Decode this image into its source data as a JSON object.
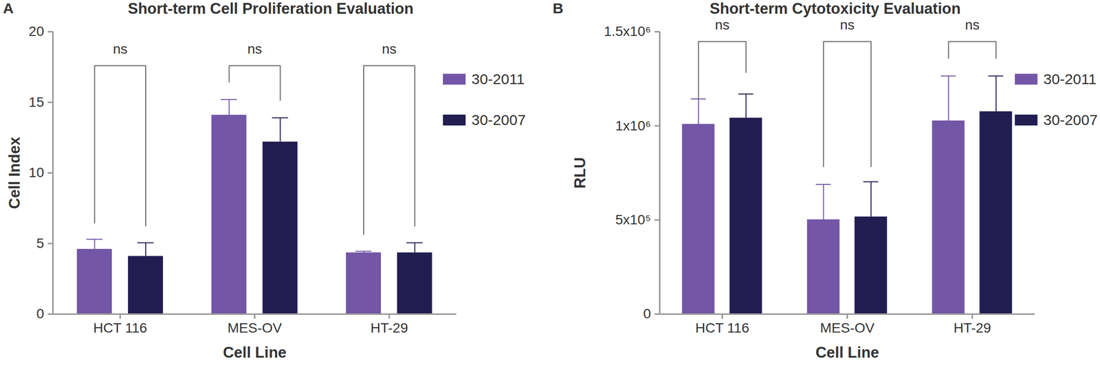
{
  "chart_data": [
    {
      "type": "bar",
      "panel_label": "A",
      "title": "Short-term Cell Proliferation Evaluation",
      "x_label": "Cell Line",
      "y_label": "Cell Index",
      "categories": [
        "HCT 116",
        "MES-OV",
        "HT-29"
      ],
      "series": [
        {
          "name": "30-2011",
          "color": "#7356a6",
          "values": [
            4.6,
            14.1,
            4.35
          ],
          "errors": [
            0.7,
            1.1,
            0.1
          ]
        },
        {
          "name": "30-2007",
          "color": "#221e52",
          "values": [
            4.1,
            12.2,
            4.35
          ],
          "errors": [
            0.95,
            1.7,
            0.7
          ]
        }
      ],
      "ylim": [
        0,
        20
      ],
      "yticks": [
        0,
        5,
        10,
        15,
        20
      ],
      "legend": "right",
      "annotations": [
        {
          "text": "ns",
          "category": "HCT 116",
          "y": 17.6,
          "y_left": 6.4,
          "y_right": 6.2
        },
        {
          "text": "ns",
          "category": "MES-OV",
          "y": 17.6,
          "y_left": 16.4,
          "y_right": 15.1
        },
        {
          "text": "ns",
          "category": "HT-29",
          "y": 17.6,
          "y_left": 5.6,
          "y_right": 6.2
        }
      ]
    },
    {
      "type": "bar",
      "panel_label": "B",
      "title": "Short-term Cytotoxicity Evaluation",
      "x_label": "Cell Line",
      "y_label": "RLU",
      "categories": [
        "HCT 116",
        "MES-OV",
        "HT-29"
      ],
      "series": [
        {
          "name": "30-2011",
          "color": "#7356a6",
          "values": [
            1009000,
            502000,
            1027000
          ],
          "errors": [
            134000,
            187000,
            238000
          ]
        },
        {
          "name": "30-2007",
          "color": "#221e52",
          "values": [
            1042000,
            517000,
            1076000
          ],
          "errors": [
            127000,
            186000,
            189000
          ]
        }
      ],
      "ylim": [
        0,
        1500000
      ],
      "yticks": [
        0,
        {
          "value": 500000,
          "label": "5x10⁵"
        },
        {
          "value": 1000000,
          "label": "1x10⁶"
        },
        {
          "value": 1500000,
          "label": "1.5x10⁶"
        }
      ],
      "legend": "right",
      "annotations": [
        {
          "text": "ns",
          "category": "HCT 116",
          "y": 1448000,
          "y_left": 1143000,
          "y_right": 1280000
        },
        {
          "text": "ns",
          "category": "MES-OV",
          "y": 1448000,
          "y_left": 780000,
          "y_right": 780000
        },
        {
          "text": "ns",
          "category": "HT-29",
          "y": 1448000,
          "y_left": 1355000,
          "y_right": 1355000
        }
      ]
    }
  ]
}
